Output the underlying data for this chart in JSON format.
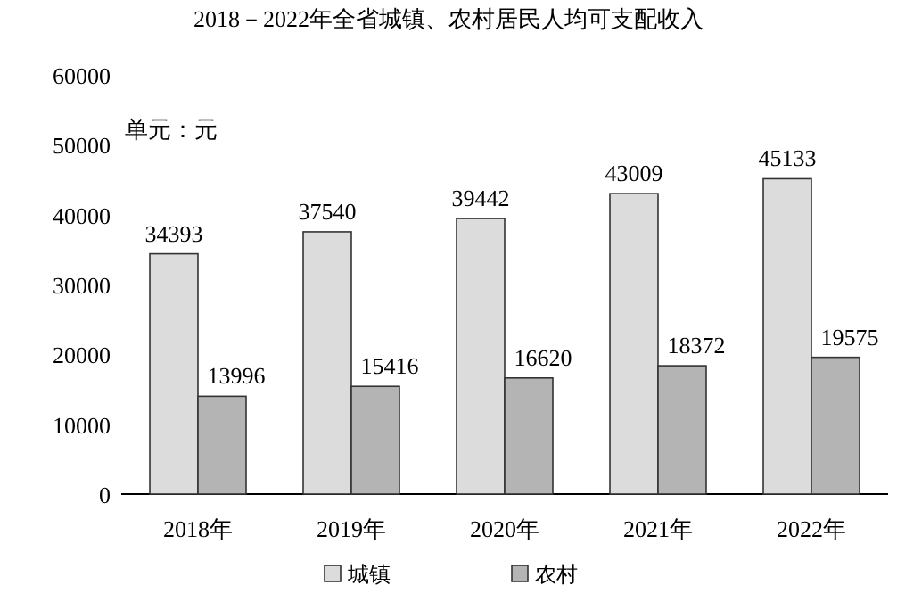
{
  "chart_data": {
    "type": "bar",
    "title": "2018－2022年全省城镇、农村居民人均可支配收入",
    "categories": [
      "2018年",
      "2019年",
      "2020年",
      "2021年",
      "2022年"
    ],
    "series": [
      {
        "name": "城镇",
        "color": "#dcdcdc",
        "values": [
          34393,
          37540,
          39442,
          43009,
          45133
        ]
      },
      {
        "name": "农村",
        "color": "#b4b4b4",
        "values": [
          13996,
          15416,
          16620,
          18372,
          19575
        ]
      }
    ],
    "ylim": [
      0,
      60000
    ],
    "yticks": [
      0,
      10000,
      20000,
      30000,
      40000,
      50000,
      60000
    ],
    "data_labels": true,
    "legend": "bottom",
    "grid": false,
    "annotations": [
      "单元：元"
    ]
  }
}
